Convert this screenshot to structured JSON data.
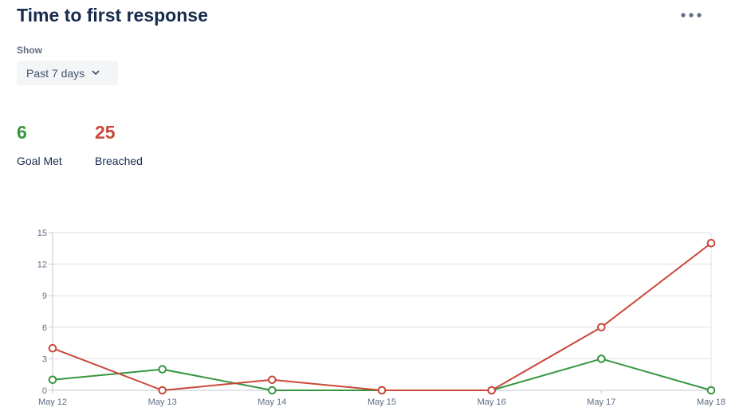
{
  "header": {
    "title": "Time to first response",
    "more_icon": "more-horizontal-icon"
  },
  "filter": {
    "label": "Show",
    "selected": "Past 7 days",
    "chevron_icon": "chevron-down-icon"
  },
  "stats": {
    "goal_met": {
      "value": "6",
      "label": "Goal Met",
      "color": "#36963f"
    },
    "breached": {
      "value": "25",
      "label": "Breached",
      "color": "#c9483a"
    }
  },
  "chart_data": {
    "type": "line",
    "categories": [
      "May 12",
      "May 13",
      "May 14",
      "May 15",
      "May 16",
      "May 17",
      "May 18"
    ],
    "yticks": [
      0,
      3,
      6,
      9,
      12,
      15
    ],
    "ylim": [
      0,
      15
    ],
    "grid": true,
    "series": [
      {
        "name": "Goal Met",
        "color": "#36963f",
        "values": [
          1,
          2,
          0,
          0,
          0,
          3,
          0
        ]
      },
      {
        "name": "Breached",
        "color": "#c9483a",
        "values": [
          4,
          0,
          1,
          0,
          0,
          6,
          14
        ]
      }
    ]
  }
}
